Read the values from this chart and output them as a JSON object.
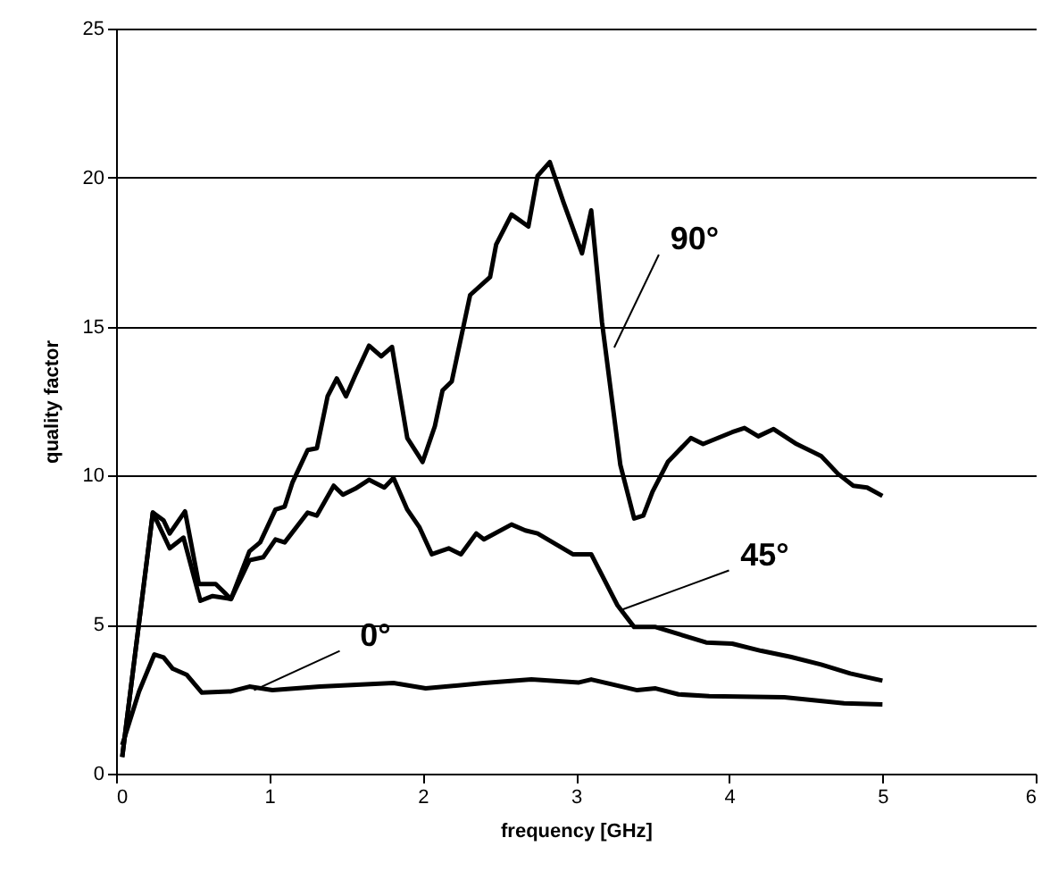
{
  "chart_data": {
    "type": "line",
    "xlabel": "frequency [GHz]",
    "ylabel": "quality factor",
    "xlim": [
      0,
      6
    ],
    "xticks": [
      0,
      1,
      2,
      3,
      4,
      5,
      6
    ],
    "ylim": [
      0,
      25
    ],
    "yticks": [
      0,
      5,
      10,
      15,
      20,
      25
    ],
    "grid": "y",
    "marker": "none",
    "line_style": "solid",
    "series": [
      {
        "color": "#000000",
        "x": [
          0.04,
          0.24,
          0.31,
          0.35,
          0.45,
          0.54,
          0.65,
          0.75,
          0.87,
          0.94,
          1.04,
          1.1,
          1.15,
          1.25,
          1.31,
          1.38,
          1.44,
          1.5,
          1.56,
          1.65,
          1.73,
          1.8,
          1.9,
          2.0,
          2.08,
          2.13,
          2.19,
          2.31,
          2.44,
          2.48,
          2.58,
          2.69,
          2.75,
          2.83,
          2.92,
          3.04,
          3.1,
          3.17,
          3.23,
          3.29,
          3.38,
          3.44,
          3.5,
          3.6,
          3.75,
          3.83,
          4.02,
          4.1,
          4.19,
          4.29,
          4.44,
          4.6,
          4.71,
          4.81,
          4.9,
          5.0
        ],
        "values": [
          0.56,
          8.76,
          8.5,
          8.06,
          8.8,
          6.36,
          6.36,
          5.86,
          7.46,
          7.76,
          8.86,
          8.96,
          9.76,
          10.86,
          10.92,
          12.66,
          13.26,
          12.66,
          13.36,
          14.36,
          14.0,
          14.32,
          11.26,
          10.46,
          11.66,
          12.86,
          13.16,
          16.06,
          16.66,
          17.76,
          18.76,
          18.36,
          20.06,
          20.52,
          19.16,
          17.46,
          18.9,
          15.16,
          12.76,
          10.36,
          8.56,
          8.66,
          9.46,
          10.46,
          11.26,
          11.06,
          11.46,
          11.6,
          11.32,
          11.56,
          11.06,
          10.66,
          10.06,
          9.66,
          9.6,
          9.32
        ]
      },
      {
        "color": "#000000",
        "x": [
          0.04,
          0.24,
          0.35,
          0.44,
          0.55,
          0.63,
          0.75,
          0.87,
          0.96,
          1.04,
          1.1,
          1.25,
          1.31,
          1.42,
          1.48,
          1.56,
          1.65,
          1.75,
          1.81,
          1.9,
          1.98,
          2.06,
          2.17,
          2.25,
          2.35,
          2.4,
          2.58,
          2.67,
          2.75,
          2.98,
          3.1,
          3.27,
          3.38,
          3.52,
          3.85,
          4.02,
          4.21,
          4.4,
          4.6,
          4.79,
          5.0
        ],
        "values": [
          0.56,
          8.76,
          7.56,
          7.92,
          5.8,
          5.96,
          5.86,
          7.16,
          7.26,
          7.86,
          7.76,
          8.76,
          8.66,
          9.66,
          9.36,
          9.56,
          9.86,
          9.6,
          9.92,
          8.86,
          8.26,
          7.36,
          7.56,
          7.36,
          8.06,
          7.86,
          8.36,
          8.16,
          8.06,
          7.36,
          7.36,
          5.66,
          4.92,
          4.92,
          4.4,
          4.36,
          4.12,
          3.92,
          3.66,
          3.36,
          3.12
        ]
      },
      {
        "color": "#000000",
        "x": [
          0.04,
          0.15,
          0.25,
          0.31,
          0.37,
          0.46,
          0.56,
          0.75,
          0.87,
          1.02,
          1.33,
          1.63,
          1.81,
          2.02,
          2.4,
          2.71,
          3.02,
          3.1,
          3.4,
          3.52,
          3.67,
          3.87,
          4.36,
          4.75,
          5.0
        ],
        "values": [
          0.96,
          2.76,
          4.0,
          3.9,
          3.52,
          3.32,
          2.72,
          2.76,
          2.92,
          2.8,
          2.92,
          3.0,
          3.04,
          2.86,
          3.04,
          3.16,
          3.06,
          3.16,
          2.8,
          2.86,
          2.66,
          2.6,
          2.56,
          2.36,
          2.32
        ]
      }
    ],
    "annotations": [
      {
        "text": "90°",
        "x": 3.25,
        "y": 14.3
      },
      {
        "text": "45°",
        "x": 3.3,
        "y": 5.5
      },
      {
        "text": "0°",
        "x": 0.9,
        "y": 2.8
      }
    ]
  }
}
